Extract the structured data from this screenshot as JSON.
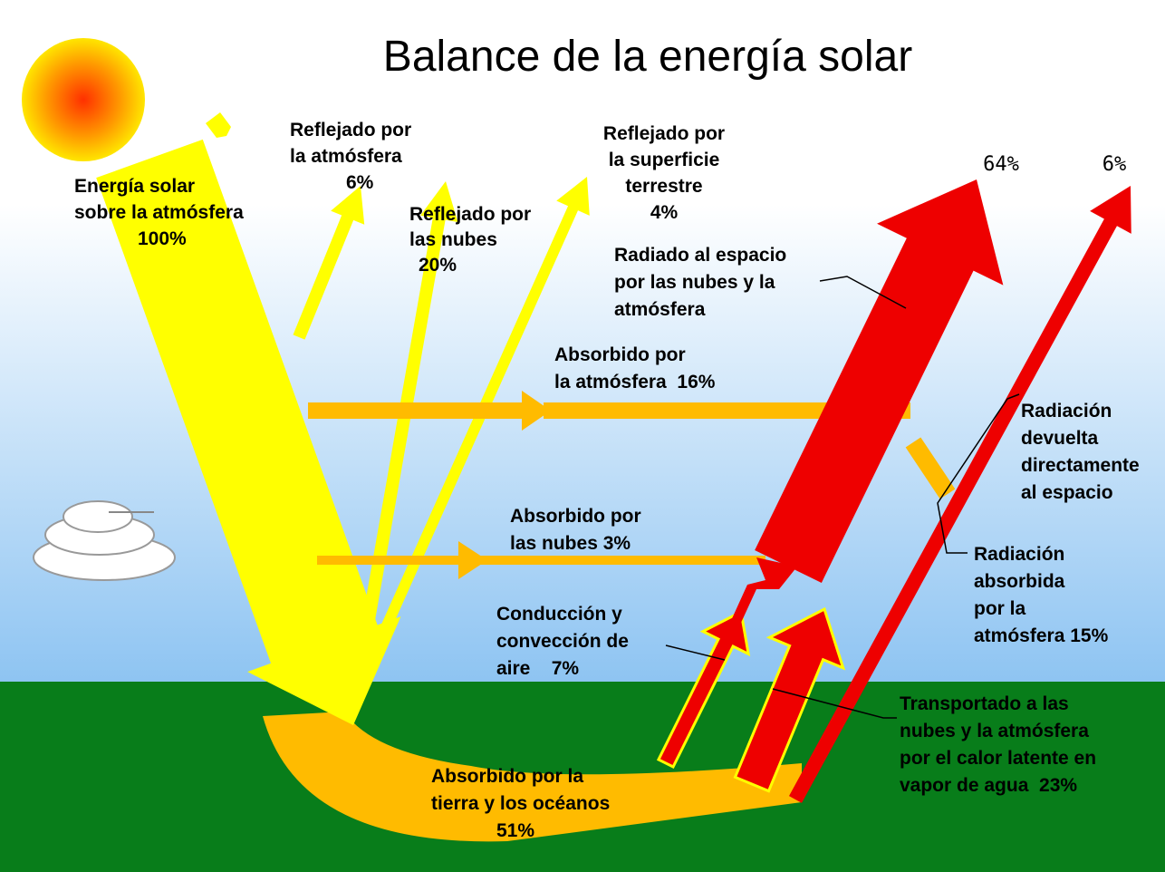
{
  "title": "Balance de la energía solar",
  "labels": [
    {
      "lines": [
        "Energía solar",
        "sobre la atmósfera",
        "100%"
      ]
    },
    {
      "lines": [
        "Reflejado por",
        "la atmósfera",
        "6%"
      ]
    },
    {
      "lines": [
        "Reflejado por",
        "las nubes",
        "20%"
      ]
    },
    {
      "lines": [
        "Reflejado por",
        "la superficie",
        "terrestre",
        "4%"
      ]
    },
    {
      "lines": [
        "64%"
      ]
    },
    {
      "lines": [
        "6%"
      ]
    },
    {
      "lines": [
        "Radiado al espacio",
        "por las nubes y la",
        "atmósfera"
      ]
    },
    {
      "lines": [
        "Absorbido por",
        "la atmósfera  16%"
      ]
    },
    {
      "lines": [
        "Radiación",
        "devuelta",
        "directamente",
        "al espacio"
      ]
    },
    {
      "lines": [
        "Absorbido por",
        "las nubes 3%"
      ]
    },
    {
      "lines": [
        "Radiación",
        "absorbida",
        "por la",
        "atmósfera 15%"
      ]
    },
    {
      "lines": [
        "Conducción y",
        "convección de",
        "aire    7%"
      ]
    },
    {
      "lines": [
        "Transportado a las",
        "nubes y la atmósfera",
        "por el calor latente en",
        "vapor de agua  23%"
      ]
    },
    {
      "lines": [
        "Absorbido por la",
        "tierra y los océanos",
        "51%"
      ]
    }
  ]
}
